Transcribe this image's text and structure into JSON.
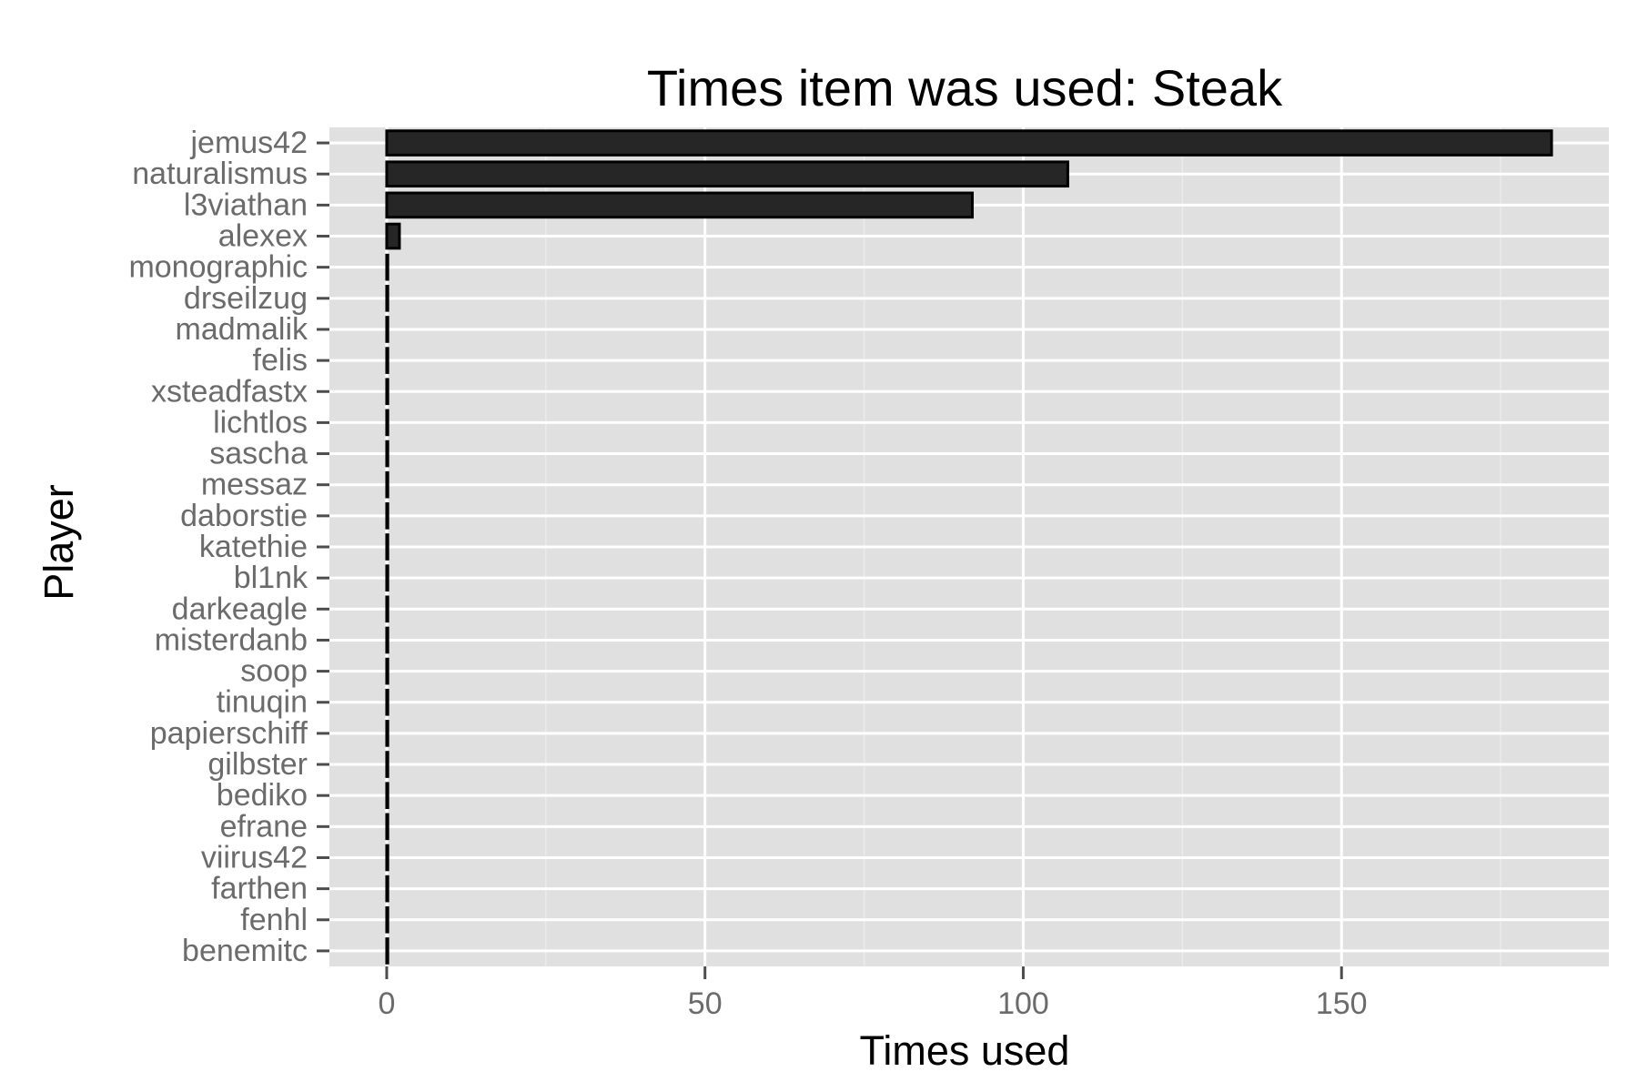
{
  "chart_data": {
    "type": "bar",
    "orientation": "horizontal",
    "title": "Times item was used: Steak",
    "xlabel": "Times used",
    "ylabel": "Player",
    "xlim": [
      -9,
      192
    ],
    "xticks": [
      0,
      50,
      100,
      150
    ],
    "grid": true,
    "legend": "none",
    "categories": [
      "jemus42",
      "naturalismus",
      "l3viathan",
      "alexex",
      "monographic",
      "drseilzug",
      "madmalik",
      "felis",
      "xsteadfastx",
      "lichtlos",
      "sascha",
      "messaz",
      "daborstie",
      "katethie",
      "bl1nk",
      "darkeagle",
      "misterdanb",
      "soop",
      "tinuqin",
      "papierschiff",
      "gilbster",
      "bediko",
      "efrane",
      "viirus42",
      "farthen",
      "fenhl",
      "benemitc"
    ],
    "values": [
      183,
      107,
      92,
      2,
      0,
      0,
      0,
      0,
      0,
      0,
      0,
      0,
      0,
      0,
      0,
      0,
      0,
      0,
      0,
      0,
      0,
      0,
      0,
      0,
      0,
      0,
      0
    ],
    "colors": {
      "panel": "#e0e0e0",
      "grid_major": "#ffffff",
      "grid_minor": "#ebebeb",
      "bar_fill": "#262626",
      "bar_stroke": "#000000",
      "tick_text": "#6b6b6b",
      "tick_mark": "#4d4d4d"
    }
  }
}
